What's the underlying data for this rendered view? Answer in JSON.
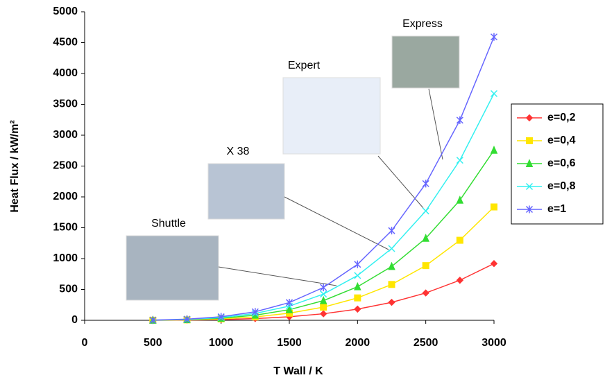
{
  "chart_data": {
    "type": "line",
    "x_label": "T Wall / K",
    "y_label": "Heat Flux / kW/m²",
    "x": [
      500,
      750,
      1000,
      1250,
      1500,
      1750,
      2000,
      2250,
      2500,
      2750,
      3000
    ],
    "xlim": [
      0,
      3000
    ],
    "xticks": [
      0,
      500,
      1000,
      1500,
      2000,
      2500,
      3000
    ],
    "ylim": [
      0,
      5000
    ],
    "yticks": [
      0,
      500,
      1000,
      1500,
      2000,
      2500,
      3000,
      3500,
      4000,
      4500,
      5000
    ],
    "grid": false,
    "legend": "right",
    "series": [
      {
        "name": "e=0,2",
        "color": "#ff3333",
        "marker": "diamond",
        "values": [
          0.7,
          3.6,
          11,
          28,
          57,
          106,
          181,
          291,
          443,
          649,
          919
        ]
      },
      {
        "name": "e=0,4",
        "color": "#ffe600",
        "marker": "square",
        "values": [
          1.4,
          7.2,
          23,
          55,
          115,
          213,
          363,
          581,
          886,
          1297,
          1837
        ]
      },
      {
        "name": "e=0,6",
        "color": "#33dd33",
        "marker": "triangle",
        "values": [
          2.1,
          10.8,
          34,
          83,
          172,
          319,
          544,
          872,
          1329,
          1946,
          2756
        ]
      },
      {
        "name": "e=0,8",
        "color": "#33f0f0",
        "marker": "x",
        "values": [
          2.8,
          14.4,
          45,
          111,
          230,
          425,
          726,
          1163,
          1772,
          2594,
          3674
        ]
      },
      {
        "name": "e=1",
        "color": "#6666ff",
        "marker": "star",
        "values": [
          3.5,
          17.9,
          57,
          138,
          287,
          532,
          907,
          1453,
          2215,
          3243,
          4593
        ]
      }
    ],
    "annotations": [
      "Shuttle",
      "X 38",
      "Expert",
      "Express"
    ]
  }
}
